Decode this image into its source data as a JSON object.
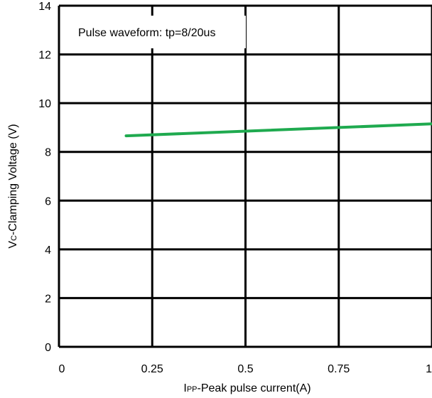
{
  "chart_data": {
    "type": "line",
    "annotation": "Pulse waveform: tp=8/20us",
    "xlabel": {
      "main": "I",
      "sub": "PP",
      "rest": "-Peak pulse current(A)"
    },
    "ylabel": {
      "main": "V",
      "sub": "C",
      "rest": "-Clamping Voltage (V)"
    },
    "xlim": [
      0,
      1
    ],
    "ylim": [
      0,
      14
    ],
    "x_ticks": [
      {
        "value": 0,
        "label": "0"
      },
      {
        "value": 0.25,
        "label": "0.25"
      },
      {
        "value": 0.5,
        "label": "0.5"
      },
      {
        "value": 0.75,
        "label": "0.75"
      },
      {
        "value": 1,
        "label": "1"
      }
    ],
    "y_ticks": [
      {
        "value": 0,
        "label": "0"
      },
      {
        "value": 2,
        "label": "2"
      },
      {
        "value": 4,
        "label": "4"
      },
      {
        "value": 6,
        "label": "6"
      },
      {
        "value": 8,
        "label": "8"
      },
      {
        "value": 10,
        "label": "10"
      },
      {
        "value": 12,
        "label": "12"
      },
      {
        "value": 14,
        "label": "14"
      }
    ],
    "grid": true,
    "series": [
      {
        "color": "#1faa4f",
        "x": [
          0.18,
          1.0
        ],
        "y": [
          8.66,
          9.15
        ]
      }
    ]
  }
}
